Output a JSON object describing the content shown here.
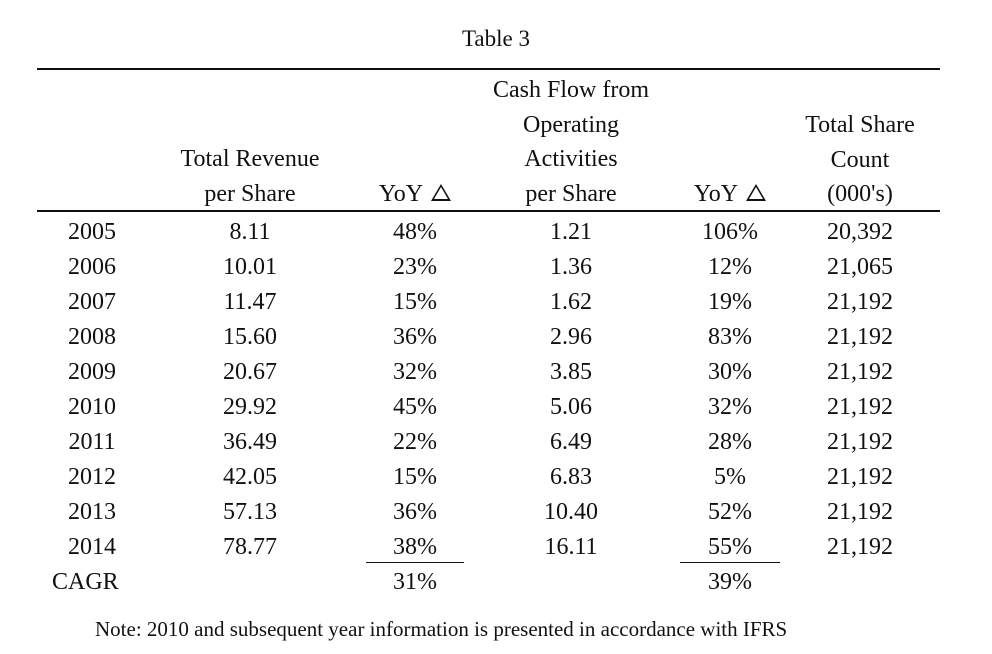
{
  "table": {
    "title": "Table 3",
    "headers": {
      "revenue": [
        "Total Revenue",
        "per Share"
      ],
      "yoy": "YoY",
      "cashflow": [
        "Cash Flow from",
        "Operating",
        "Activities",
        "per Share"
      ],
      "shares": [
        "Total Share",
        "Count",
        "(000's)"
      ]
    },
    "rows": [
      {
        "year": "2005",
        "revenue": "8.11",
        "yoy_rev": "48%",
        "cashflow": "1.21",
        "yoy_cf": "106%",
        "shares": "20,392"
      },
      {
        "year": "2006",
        "revenue": "10.01",
        "yoy_rev": "23%",
        "cashflow": "1.36",
        "yoy_cf": "12%",
        "shares": "21,065"
      },
      {
        "year": "2007",
        "revenue": "11.47",
        "yoy_rev": "15%",
        "cashflow": "1.62",
        "yoy_cf": "19%",
        "shares": "21,192"
      },
      {
        "year": "2008",
        "revenue": "15.60",
        "yoy_rev": "36%",
        "cashflow": "2.96",
        "yoy_cf": "83%",
        "shares": "21,192"
      },
      {
        "year": "2009",
        "revenue": "20.67",
        "yoy_rev": "32%",
        "cashflow": "3.85",
        "yoy_cf": "30%",
        "shares": "21,192"
      },
      {
        "year": "2010",
        "revenue": "29.92",
        "yoy_rev": "45%",
        "cashflow": "5.06",
        "yoy_cf": "32%",
        "shares": "21,192"
      },
      {
        "year": "2011",
        "revenue": "36.49",
        "yoy_rev": "22%",
        "cashflow": "6.49",
        "yoy_cf": "28%",
        "shares": "21,192"
      },
      {
        "year": "2012",
        "revenue": "42.05",
        "yoy_rev": "15%",
        "cashflow": "6.83",
        "yoy_cf": "5%",
        "shares": "21,192"
      },
      {
        "year": "2013",
        "revenue": "57.13",
        "yoy_rev": "36%",
        "cashflow": "10.40",
        "yoy_cf": "52%",
        "shares": "21,192"
      },
      {
        "year": "2014",
        "revenue": "78.77",
        "yoy_rev": "38%",
        "cashflow": "16.11",
        "yoy_cf": "55%",
        "shares": "21,192"
      }
    ],
    "cagr": {
      "label": "CAGR",
      "revenue": "31%",
      "cashflow": "39%"
    },
    "note": "Note: 2010 and subsequent year information is presented in accordance with IFRS"
  }
}
